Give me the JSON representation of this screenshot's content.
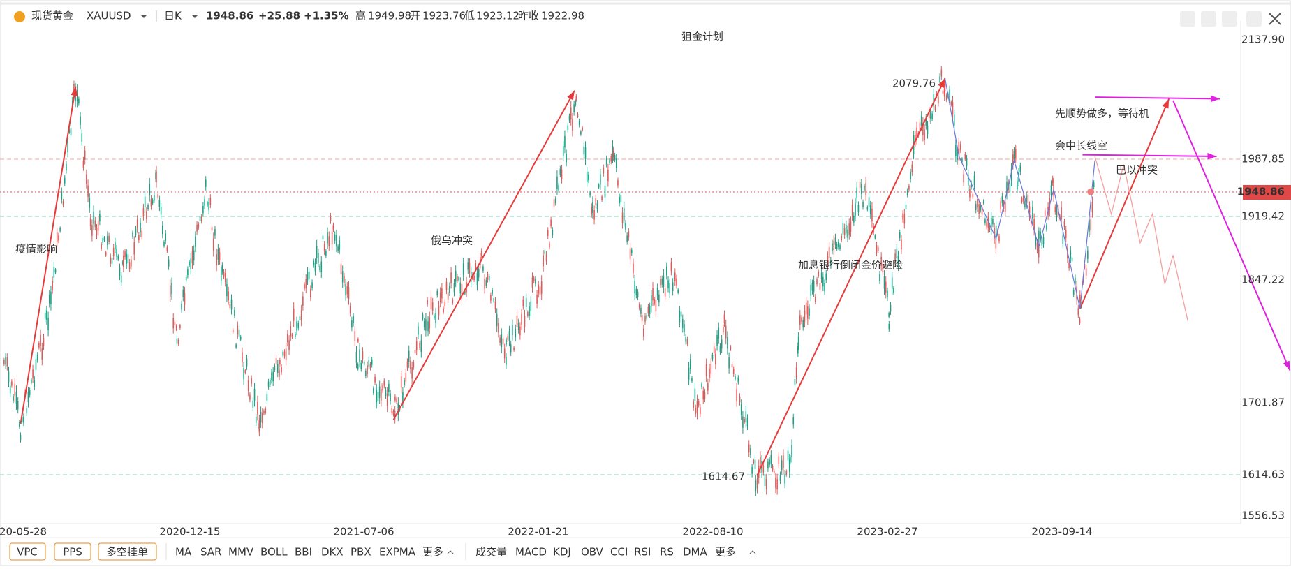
{
  "header": {
    "name": "现货黄金",
    "symbol": "XAUUSD",
    "period": "日K",
    "price": "1948.86",
    "change": "+25.88",
    "change_pct": "+1.35%",
    "high_label": "高",
    "high": "1949.98",
    "open_label": "开",
    "open": "1923.76",
    "low_label": "低",
    "low": "1923.12",
    "prev_close_label": "昨收",
    "prev_close": "1922.98"
  },
  "title": "狙金计划",
  "y_axis_labels": [
    "2137.90",
    "1987.85",
    "1948.86",
    "1919.42",
    "1847.22",
    "1701.87",
    "1614.63",
    "1556.53"
  ],
  "x_axis_labels": [
    "20-05-28",
    "2020-12-15",
    "2021-07-06",
    "2022-01-21",
    "2022-08-10",
    "2023-02-27",
    "2023-09-14"
  ],
  "annotations": {
    "covid": "疫情影响",
    "russia_ukraine": "俄乌冲突",
    "rate_hikes": "加息银行倒闭金价避险",
    "high": "2079.76",
    "low": "1614.67",
    "israel": "巴以冲突",
    "plan_line1": "先顺势做多，等待机",
    "plan_line2": "会中长线空"
  },
  "toolbar": {
    "buttons": [
      "VPC",
      "PPS",
      "多空挂单"
    ],
    "indicators": [
      "MA",
      "SAR",
      "MMV",
      "BOLL",
      "BBI",
      "DKX",
      "PBX",
      "EXPMA"
    ],
    "more": "更多",
    "sub_indicators": [
      "成交量",
      "MACD",
      "KDJ",
      "OBV",
      "CCI",
      "RSI",
      "RS",
      "DMA"
    ],
    "more2": "更多"
  }
}
